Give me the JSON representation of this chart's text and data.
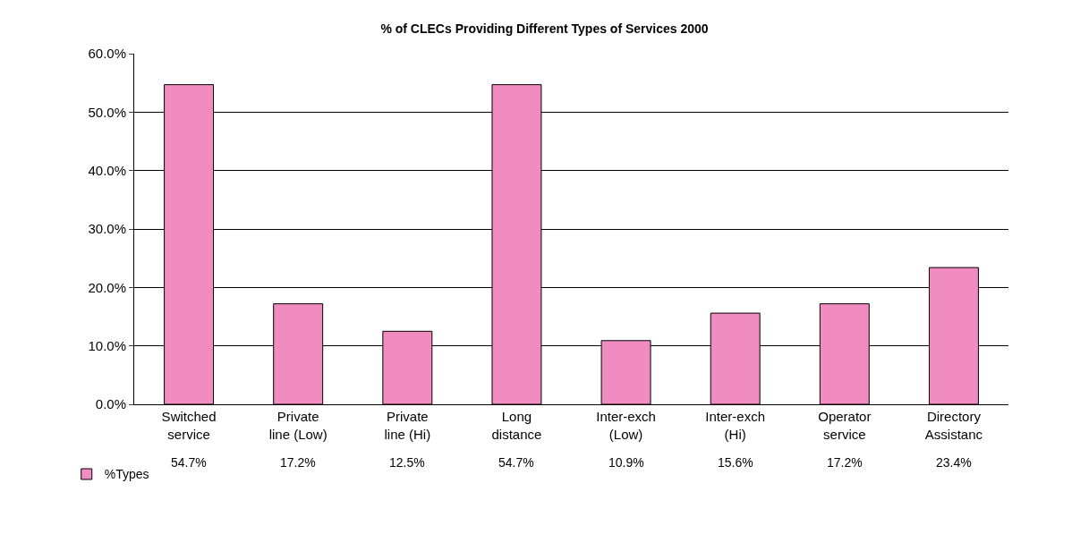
{
  "chart_data": {
    "type": "bar",
    "title": "% of CLECs Providing Different Types of Services 2000",
    "categories": [
      "Switched service",
      "Private line (Low)",
      "Private line (Hi)",
      "Long distance",
      "Inter-exch (Low)",
      "Inter-exch (Hi)",
      "Operator service",
      "Directory Assistanc"
    ],
    "series": [
      {
        "name": "%Types",
        "color": "#f08cc0",
        "values": [
          54.7,
          17.2,
          12.5,
          54.7,
          10.9,
          15.6,
          17.2,
          23.4
        ],
        "value_labels": [
          "54.7%",
          "17.2%",
          "12.5%",
          "54.7%",
          "10.9%",
          "15.6%",
          "17.2%",
          "23.4%"
        ]
      }
    ],
    "ylim": [
      0,
      60
    ],
    "yticks": [
      {
        "value": 0,
        "label": "0.0%"
      },
      {
        "value": 10,
        "label": "10.0%"
      },
      {
        "value": 20,
        "label": "20.0%"
      },
      {
        "value": 30,
        "label": "30.0%"
      },
      {
        "value": 40,
        "label": "40.0%"
      },
      {
        "value": 50,
        "label": "50.0%"
      },
      {
        "value": 60,
        "label": "60.0%"
      }
    ],
    "grid": "y",
    "legend": "bottom left"
  }
}
